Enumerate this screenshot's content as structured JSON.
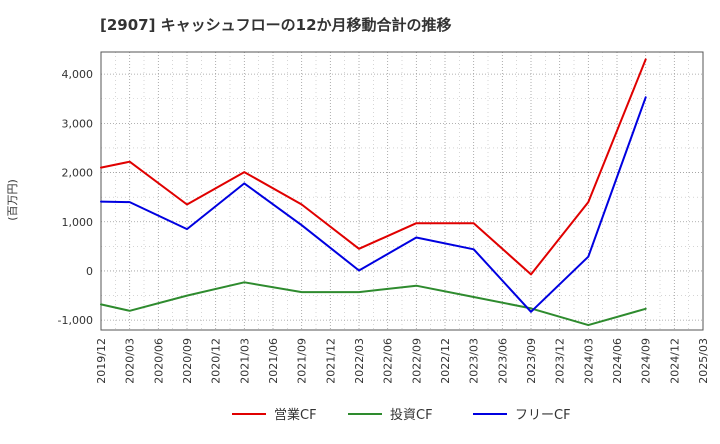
{
  "chart_data": {
    "type": "line",
    "title": "[2907]  キャッシュフローの12か月移動合計の推移",
    "ylabel": "(百万円)",
    "xlabel": "",
    "ylim": [
      -1200,
      4450
    ],
    "yticks": [
      -1000,
      0,
      1000,
      2000,
      3000,
      4000
    ],
    "ytick_labels": [
      "-1,000",
      "0",
      "1,000",
      "2,000",
      "3,000",
      "4,000"
    ],
    "x_ticks": [
      "2019/12",
      "2020/03",
      "2020/06",
      "2020/09",
      "2020/12",
      "2021/03",
      "2021/06",
      "2021/09",
      "2021/12",
      "2022/03",
      "2022/06",
      "2022/09",
      "2022/12",
      "2023/03",
      "2023/06",
      "2023/09",
      "2023/12",
      "2024/03",
      "2024/06",
      "2024/09",
      "2024/12",
      "2025/03"
    ],
    "grid": true,
    "legend_position": "bottom",
    "series": [
      {
        "name": "営業CF",
        "color": "#e00000",
        "points": [
          [
            "2019/12",
            2100
          ],
          [
            "2020/03",
            2220
          ],
          [
            "2020/09",
            1350
          ],
          [
            "2021/03",
            2010
          ],
          [
            "2021/09",
            1350
          ],
          [
            "2022/03",
            450
          ],
          [
            "2022/09",
            970
          ],
          [
            "2023/03",
            970
          ],
          [
            "2023/09",
            -70
          ],
          [
            "2024/03",
            1400
          ],
          [
            "2024/09",
            4300
          ]
        ]
      },
      {
        "name": "投資CF",
        "color": "#2e8b2e",
        "points": [
          [
            "2019/12",
            -680
          ],
          [
            "2020/03",
            -810
          ],
          [
            "2020/09",
            -500
          ],
          [
            "2021/03",
            -230
          ],
          [
            "2021/09",
            -430
          ],
          [
            "2022/03",
            -430
          ],
          [
            "2022/09",
            -300
          ],
          [
            "2023/03",
            -530
          ],
          [
            "2023/09",
            -760
          ],
          [
            "2024/03",
            -1100
          ],
          [
            "2024/09",
            -770
          ]
        ]
      },
      {
        "name": "フリーCF",
        "color": "#0000e0",
        "points": [
          [
            "2019/12",
            1410
          ],
          [
            "2020/03",
            1400
          ],
          [
            "2020/09",
            850
          ],
          [
            "2021/03",
            1780
          ],
          [
            "2021/09",
            930
          ],
          [
            "2022/03",
            10
          ],
          [
            "2022/09",
            680
          ],
          [
            "2023/03",
            440
          ],
          [
            "2023/09",
            -830
          ],
          [
            "2024/03",
            290
          ],
          [
            "2024/09",
            3530
          ]
        ]
      }
    ]
  }
}
